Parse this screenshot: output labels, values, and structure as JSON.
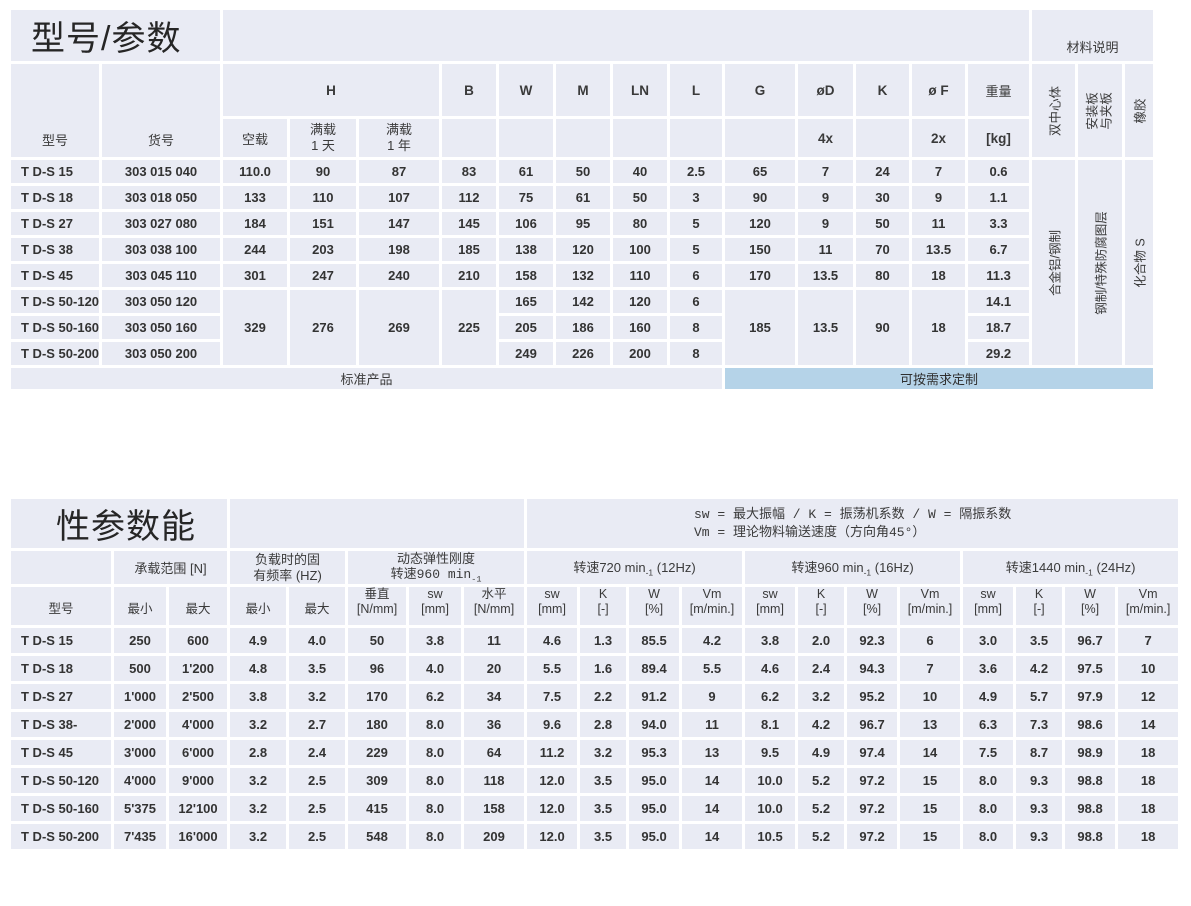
{
  "top": {
    "title": "型号/参数",
    "materials_header": "材料说明",
    "col_model": "型号",
    "col_code": "货号",
    "h_label": "H",
    "sub_empty_load": "空载",
    "full1_l1": "满载",
    "full1_l2": "1 天",
    "full2_l1": "满载",
    "full2_l2": "1 年",
    "cols": [
      "B",
      "W",
      "M",
      "LN",
      "L",
      "G",
      "øD",
      "K",
      "ø F"
    ],
    "col_weight": "重量",
    "unit_4x": "4x",
    "unit_2x": "2x",
    "unit_kg": "[kg]",
    "materials": [
      "双中心体",
      "安装板",
      "与夹板",
      "橡胶"
    ],
    "mat_values": [
      "合金铝/钢制",
      "钢制/特殊防腐图层",
      "化合物 S"
    ],
    "bar_standard": "标准产品",
    "bar_custom": "可按需求定制",
    "rows": [
      [
        "T D-S 15",
        "303 015 040",
        "110.0",
        "90",
        "87",
        "83",
        "61",
        "50",
        "40",
        "2.5",
        "65",
        "7",
        "24",
        "7",
        "0.6"
      ],
      [
        "T D-S 18",
        "303 018 050",
        "133",
        "110",
        "107",
        "112",
        "75",
        "61",
        "50",
        "3",
        "90",
        "9",
        "30",
        "9",
        "1.1"
      ],
      [
        "T D-S 27",
        "303 027 080",
        "184",
        "151",
        "147",
        "145",
        "106",
        "95",
        "80",
        "5",
        "120",
        "9",
        "50",
        "11",
        "3.3"
      ],
      [
        "T D-S 38",
        "303 038 100",
        "244",
        "203",
        "198",
        "185",
        "138",
        "120",
        "100",
        "5",
        "150",
        "11",
        "70",
        "13.5",
        "6.7"
      ],
      [
        "T D-S 45",
        "303 045 110",
        "301",
        "247",
        "240",
        "210",
        "158",
        "132",
        "110",
        "6",
        "170",
        "13.5",
        "80",
        "18",
        "11.3"
      ],
      [
        "T D-S 50-120",
        "303 050 120",
        "329",
        "276",
        "269",
        "225",
        "165",
        "142",
        "120",
        "6",
        "185",
        "13.5",
        "90",
        "18",
        "14.1"
      ],
      [
        "T D-S 50-160",
        "303 050 160",
        "205",
        "186",
        "160",
        "8",
        "18.7"
      ],
      [
        "T D-S 50-200",
        "303 050 200",
        "249",
        "226",
        "200",
        "8",
        "29.2"
      ]
    ]
  },
  "bottom": {
    "title": "性参数能",
    "legend_line1": "sw = 最大振幅 / K = 振荡机系数 / W = 隔振系数",
    "legend_line2": "Vm = 理论物料输送速度（方向角45°）",
    "g_load": "承载范围 [N]",
    "g_freq_l1": "负载时的固",
    "g_freq_l2": "有频率 (HZ)",
    "g_dyn_l1": "动态弹性刚度",
    "g_dyn_l2": "转速960 min",
    "sub_exp": "-1",
    "g_speeds": [
      {
        "pre": "转速720 min",
        "suf": " (12Hz)"
      },
      {
        "pre": "转速960 min",
        "suf": " (16Hz)"
      },
      {
        "pre": "转速1440 min",
        "suf": " (24Hz)"
      }
    ],
    "col_model": "型号",
    "min_label": "最小",
    "max_label": "最大",
    "cols2": [
      {
        "a": "垂直",
        "b": "[N/mm]"
      },
      {
        "a": "sw",
        "b": "[mm]"
      },
      {
        "a": "水平",
        "b": "[N/mm]"
      },
      {
        "a": "sw",
        "b": "[mm]"
      },
      {
        "a": "K",
        "b": "[-]"
      },
      {
        "a": "W",
        "b": "[%]"
      },
      {
        "a": "Vm",
        "b": "[m/min.]"
      },
      {
        "a": "sw",
        "b": "[mm]"
      },
      {
        "a": "K",
        "b": "[-]"
      },
      {
        "a": "W",
        "b": "[%]"
      },
      {
        "a": "Vm",
        "b": "[m/min.]"
      },
      {
        "a": "sw",
        "b": "[mm]"
      },
      {
        "a": "K",
        "b": "[-]"
      },
      {
        "a": "W",
        "b": "[%]"
      },
      {
        "a": "Vm",
        "b": "[m/min.]"
      }
    ],
    "rows": [
      [
        "T D-S 15",
        "250",
        "600",
        "4.9",
        "4.0",
        "50",
        "3.8",
        "11",
        "4.6",
        "1.3",
        "85.5",
        "4.2",
        "3.8",
        "2.0",
        "92.3",
        "6",
        "3.0",
        "3.5",
        "96.7",
        "7"
      ],
      [
        "T D-S 18",
        "500",
        "1'200",
        "4.8",
        "3.5",
        "96",
        "4.0",
        "20",
        "5.5",
        "1.6",
        "89.4",
        "5.5",
        "4.6",
        "2.4",
        "94.3",
        "7",
        "3.6",
        "4.2",
        "97.5",
        "10"
      ],
      [
        "T D-S 27",
        "1'000",
        "2'500",
        "3.8",
        "3.2",
        "170",
        "6.2",
        "34",
        "7.5",
        "2.2",
        "91.2",
        "9",
        "6.2",
        "3.2",
        "95.2",
        "10",
        "4.9",
        "5.7",
        "97.9",
        "12"
      ],
      [
        "T D-S 38-",
        "2'000",
        "4'000",
        "3.2",
        "2.7",
        "180",
        "8.0",
        "36",
        "9.6",
        "2.8",
        "94.0",
        "11",
        "8.1",
        "4.2",
        "96.7",
        "13",
        "6.3",
        "7.3",
        "98.6",
        "14"
      ],
      [
        "T D-S 45",
        "3'000",
        "6'000",
        "2.8",
        "2.4",
        "229",
        "8.0",
        "64",
        "11.2",
        "3.2",
        "95.3",
        "13",
        "9.5",
        "4.9",
        "97.4",
        "14",
        "7.5",
        "8.7",
        "98.9",
        "18"
      ],
      [
        "T D-S 50-120",
        "4'000",
        "9'000",
        "3.2",
        "2.5",
        "309",
        "8.0",
        "118",
        "12.0",
        "3.5",
        "95.0",
        "14",
        "10.0",
        "5.2",
        "97.2",
        "15",
        "8.0",
        "9.3",
        "98.8",
        "18"
      ],
      [
        "T D-S 50-160",
        "5'375",
        "12'100",
        "3.2",
        "2.5",
        "415",
        "8.0",
        "158",
        "12.0",
        "3.5",
        "95.0",
        "14",
        "10.0",
        "5.2",
        "97.2",
        "15",
        "8.0",
        "9.3",
        "98.8",
        "18"
      ],
      [
        "T D-S 50-200",
        "7'435",
        "16'000",
        "3.2",
        "2.5",
        "548",
        "8.0",
        "209",
        "12.0",
        "3.5",
        "95.0",
        "14",
        "10.5",
        "5.2",
        "97.2",
        "15",
        "8.0",
        "9.3",
        "98.8",
        "18"
      ]
    ]
  }
}
